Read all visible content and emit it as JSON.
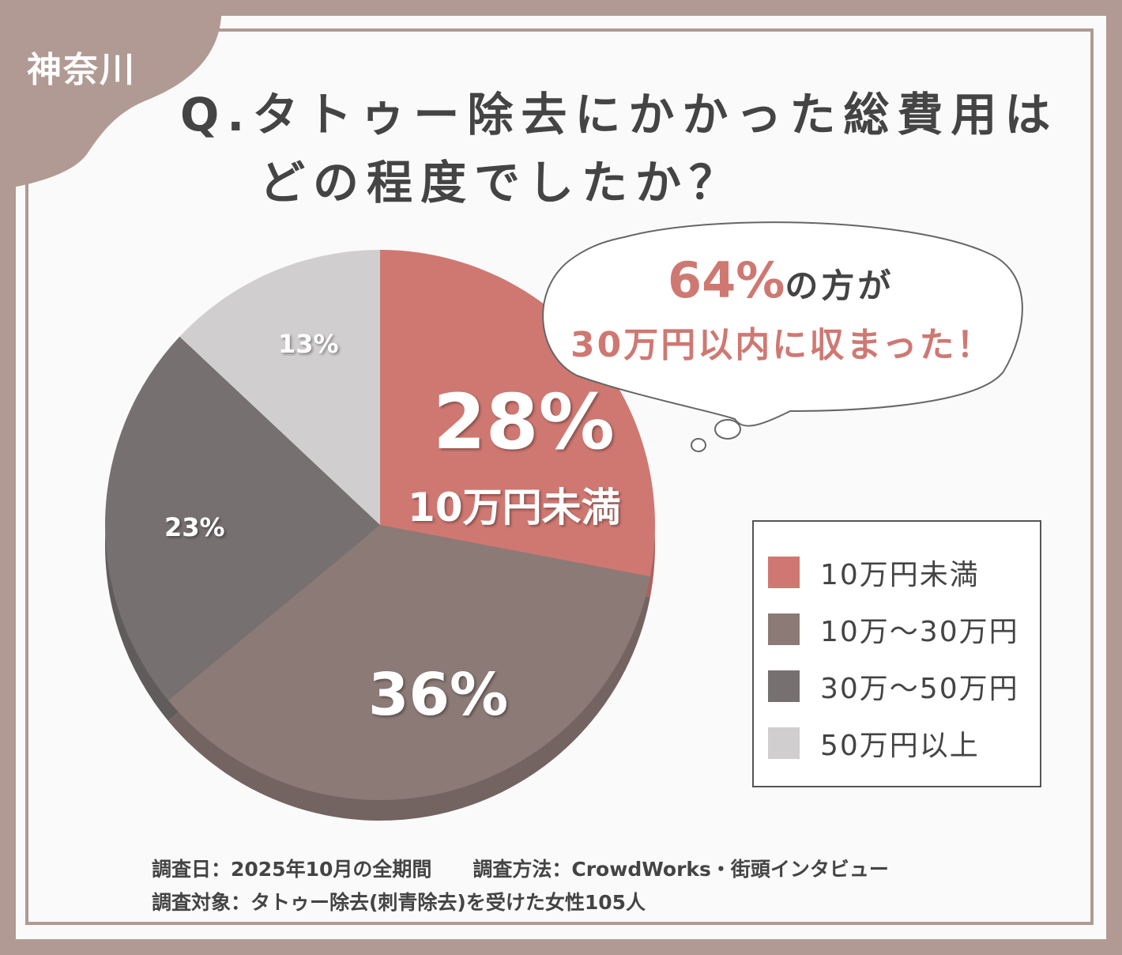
{
  "prefecture": "神奈川",
  "title": {
    "line1": "Q.タトゥー除去にかかった総費用は",
    "line2": "どの程度でしたか？"
  },
  "bubble": {
    "percent": "64%",
    "line1_suffix": "の方が",
    "line2": "30万円以内に収まった！"
  },
  "colors": {
    "frame": "#b09a93",
    "accent": "#cf7872"
  },
  "chart_data": {
    "type": "pie",
    "start": "12 o'clock, clockwise",
    "categories": [
      "10万円未満",
      "10万～30万円",
      "30万～50万円",
      "50万円以上"
    ],
    "values": [
      28,
      36,
      23,
      13
    ],
    "labels": [
      "28%",
      "36%",
      "23%",
      "13%"
    ],
    "colors": [
      "#cf7872",
      "#8c7a77",
      "#767070",
      "#d0cece"
    ],
    "inner_label": "10万円未満",
    "legend_position": "right"
  },
  "footer": {
    "date": "調査日：2025年10月の全期間",
    "method": "調査方法：CrowdWorks・街頭インタビュー",
    "target": "調査対象：タトゥー除去(刺青除去)を受けた女性105人"
  }
}
